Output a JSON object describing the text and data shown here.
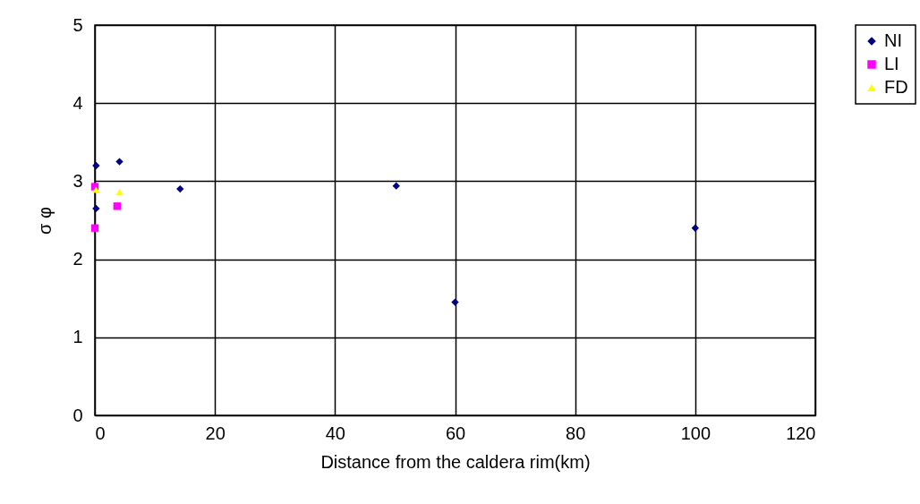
{
  "chart_data": {
    "type": "scatter",
    "xlabel": "Distance from the caldera rim(km)",
    "ylabel": "σ φ",
    "xlim": [
      0,
      120
    ],
    "xticks": [
      0,
      20,
      40,
      60,
      80,
      100,
      120
    ],
    "ylim": [
      0,
      5
    ],
    "yticks": [
      0,
      1,
      2,
      3,
      4,
      5
    ],
    "grid": true,
    "legend": "right",
    "series": [
      {
        "name": "NI",
        "color": "#000080",
        "marker": "diamond",
        "x": [
          0.2,
          0.2,
          4.1,
          14.2,
          50.2,
          60,
          100
        ],
        "values": [
          3.2,
          2.65,
          3.25,
          2.9,
          2.94,
          1.45,
          2.4
        ]
      },
      {
        "name": "LI",
        "color": "#ff00ff",
        "marker": "square",
        "x": [
          0,
          0,
          3.7
        ],
        "values": [
          2.93,
          2.4,
          2.68
        ]
      },
      {
        "name": "FD",
        "color": "#ffff00",
        "marker": "triangle",
        "x": [
          0.2,
          4.1
        ],
        "values": [
          2.89,
          2.86
        ]
      }
    ]
  }
}
